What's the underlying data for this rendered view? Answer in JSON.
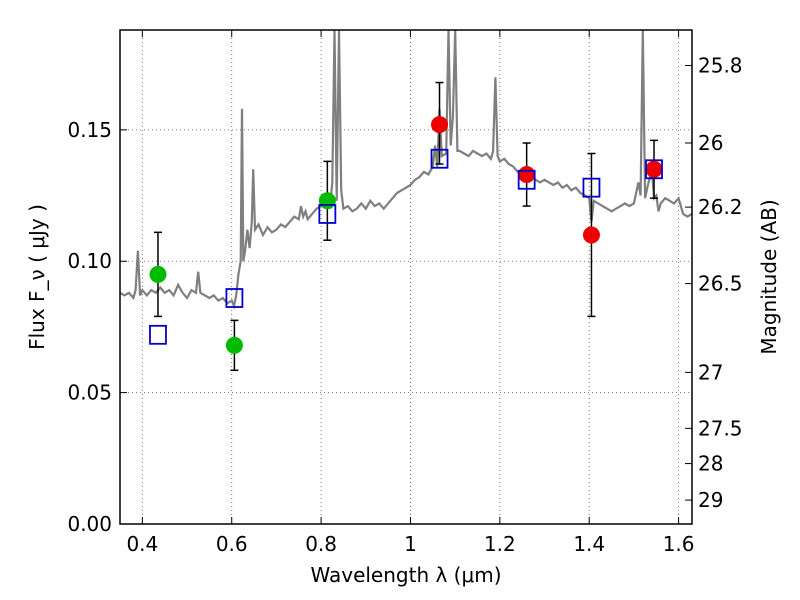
{
  "chart_data": {
    "type": "scatter",
    "xlabel": "Wavelength  λ (μm)",
    "ylabel": "Flux  F_ν  ( μJy )",
    "ylabel_right": "Magnitude (AB)",
    "xlim": [
      0.35,
      1.63
    ],
    "ylim": [
      0.0,
      0.188
    ],
    "grid": true,
    "x_ticks": [
      0.4,
      0.6,
      0.8,
      1.0,
      1.2,
      1.4,
      1.6
    ],
    "x_tick_labels": [
      "0.4",
      "0.6",
      "0.8",
      "1",
      "1.2",
      "1.4",
      "1.6"
    ],
    "y_ticks": [
      0.0,
      0.05,
      0.1,
      0.15
    ],
    "y_tick_labels": [
      "0.00",
      "0.05",
      "0.10",
      "0.15"
    ],
    "mag_ticks": [
      {
        "label": "25.8",
        "flux": 0.1745
      },
      {
        "label": "26",
        "flux": 0.145
      },
      {
        "label": "26.2",
        "flux": 0.1206
      },
      {
        "label": "26.5",
        "flux": 0.0915
      },
      {
        "label": "27",
        "flux": 0.0577
      },
      {
        "label": "27.5",
        "flux": 0.0364
      },
      {
        "label": "28",
        "flux": 0.023
      },
      {
        "label": "29",
        "flux": 0.0091
      }
    ],
    "colors": {
      "green": "#00bb00",
      "red": "#ee0000",
      "blue": "#0000cc",
      "model": "#7f7f7f",
      "grid": "#555555"
    },
    "series": [
      {
        "marker": "circle",
        "color": "#00bb00",
        "points": [
          {
            "x": 0.435,
            "y": 0.095,
            "yerr_low": 0.016,
            "yerr_high": 0.016
          },
          {
            "x": 0.606,
            "y": 0.068,
            "yerr_low": 0.0095,
            "yerr_high": 0.0095
          },
          {
            "x": 0.814,
            "y": 0.123,
            "yerr_low": 0.015,
            "yerr_high": 0.015
          }
        ]
      },
      {
        "marker": "circle",
        "color": "#ee0000",
        "points": [
          {
            "x": 1.065,
            "y": 0.152,
            "yerr_low": 0.015,
            "yerr_high": 0.016
          },
          {
            "x": 1.26,
            "y": 0.133,
            "yerr_low": 0.012,
            "yerr_high": 0.012
          },
          {
            "x": 1.405,
            "y": 0.11,
            "yerr_low": 0.031,
            "yerr_high": 0.031
          },
          {
            "x": 1.545,
            "y": 0.135,
            "yerr_low": 0.011,
            "yerr_high": 0.011
          }
        ]
      },
      {
        "marker": "open-square",
        "color": "#0000cc",
        "points": [
          {
            "x": 0.435,
            "y": 0.072
          },
          {
            "x": 0.606,
            "y": 0.086
          },
          {
            "x": 0.814,
            "y": 0.118
          },
          {
            "x": 1.065,
            "y": 0.139
          },
          {
            "x": 1.26,
            "y": 0.131
          },
          {
            "x": 1.405,
            "y": 0.128
          },
          {
            "x": 1.545,
            "y": 0.135
          }
        ]
      }
    ],
    "model_spectrum": [
      [
        0.35,
        0.088
      ],
      [
        0.36,
        0.087
      ],
      [
        0.37,
        0.088
      ],
      [
        0.38,
        0.086
      ],
      [
        0.385,
        0.089
      ],
      [
        0.39,
        0.104
      ],
      [
        0.395,
        0.087
      ],
      [
        0.4,
        0.089
      ],
      [
        0.41,
        0.087
      ],
      [
        0.42,
        0.089
      ],
      [
        0.43,
        0.088
      ],
      [
        0.44,
        0.09
      ],
      [
        0.45,
        0.088
      ],
      [
        0.46,
        0.089
      ],
      [
        0.47,
        0.087
      ],
      [
        0.48,
        0.091
      ],
      [
        0.49,
        0.088
      ],
      [
        0.5,
        0.086
      ],
      [
        0.51,
        0.089
      ],
      [
        0.52,
        0.088
      ],
      [
        0.525,
        0.096
      ],
      [
        0.53,
        0.088
      ],
      [
        0.54,
        0.087
      ],
      [
        0.55,
        0.086
      ],
      [
        0.56,
        0.087
      ],
      [
        0.57,
        0.085
      ],
      [
        0.58,
        0.086
      ],
      [
        0.59,
        0.084
      ],
      [
        0.6,
        0.085
      ],
      [
        0.605,
        0.083
      ],
      [
        0.61,
        0.087
      ],
      [
        0.615,
        0.095
      ],
      [
        0.62,
        0.1
      ],
      [
        0.623,
        0.158
      ],
      [
        0.626,
        0.1
      ],
      [
        0.63,
        0.104
      ],
      [
        0.635,
        0.112
      ],
      [
        0.64,
        0.105
      ],
      [
        0.645,
        0.115
      ],
      [
        0.648,
        0.135
      ],
      [
        0.652,
        0.112
      ],
      [
        0.66,
        0.114
      ],
      [
        0.67,
        0.11
      ],
      [
        0.68,
        0.113
      ],
      [
        0.69,
        0.111
      ],
      [
        0.7,
        0.112
      ],
      [
        0.71,
        0.114
      ],
      [
        0.72,
        0.113
      ],
      [
        0.73,
        0.115
      ],
      [
        0.74,
        0.117
      ],
      [
        0.75,
        0.116
      ],
      [
        0.755,
        0.121
      ],
      [
        0.76,
        0.117
      ],
      [
        0.765,
        0.119
      ],
      [
        0.77,
        0.116
      ],
      [
        0.78,
        0.118
      ],
      [
        0.79,
        0.12
      ],
      [
        0.8,
        0.121
      ],
      [
        0.805,
        0.124
      ],
      [
        0.81,
        0.121
      ],
      [
        0.815,
        0.125
      ],
      [
        0.82,
        0.12
      ],
      [
        0.825,
        0.13
      ],
      [
        0.83,
        0.188
      ],
      [
        0.835,
        0.123
      ],
      [
        0.84,
        0.188
      ],
      [
        0.845,
        0.127
      ],
      [
        0.85,
        0.12
      ],
      [
        0.86,
        0.121
      ],
      [
        0.87,
        0.119
      ],
      [
        0.88,
        0.12
      ],
      [
        0.89,
        0.122
      ],
      [
        0.9,
        0.12
      ],
      [
        0.91,
        0.123
      ],
      [
        0.92,
        0.121
      ],
      [
        0.93,
        0.122
      ],
      [
        0.94,
        0.12
      ],
      [
        0.95,
        0.122
      ],
      [
        0.96,
        0.124
      ],
      [
        0.97,
        0.126
      ],
      [
        0.98,
        0.127
      ],
      [
        0.99,
        0.128
      ],
      [
        1.0,
        0.129
      ],
      [
        1.01,
        0.131
      ],
      [
        1.02,
        0.132
      ],
      [
        1.03,
        0.134
      ],
      [
        1.04,
        0.133
      ],
      [
        1.05,
        0.136
      ],
      [
        1.055,
        0.144
      ],
      [
        1.06,
        0.136
      ],
      [
        1.065,
        0.158
      ],
      [
        1.07,
        0.14
      ],
      [
        1.08,
        0.141
      ],
      [
        1.085,
        0.188
      ],
      [
        1.09,
        0.144
      ],
      [
        1.095,
        0.155
      ],
      [
        1.1,
        0.188
      ],
      [
        1.105,
        0.142
      ],
      [
        1.11,
        0.142
      ],
      [
        1.12,
        0.141
      ],
      [
        1.13,
        0.14
      ],
      [
        1.14,
        0.142
      ],
      [
        1.15,
        0.141
      ],
      [
        1.16,
        0.14
      ],
      [
        1.17,
        0.141
      ],
      [
        1.18,
        0.139
      ],
      [
        1.185,
        0.142
      ],
      [
        1.19,
        0.17
      ],
      [
        1.195,
        0.14
      ],
      [
        1.2,
        0.138
      ],
      [
        1.21,
        0.139
      ],
      [
        1.22,
        0.137
      ],
      [
        1.23,
        0.136
      ],
      [
        1.24,
        0.134
      ],
      [
        1.25,
        0.133
      ],
      [
        1.26,
        0.132
      ],
      [
        1.27,
        0.133
      ],
      [
        1.28,
        0.131
      ],
      [
        1.29,
        0.13
      ],
      [
        1.3,
        0.131
      ],
      [
        1.31,
        0.13
      ],
      [
        1.32,
        0.129
      ],
      [
        1.33,
        0.13
      ],
      [
        1.34,
        0.128
      ],
      [
        1.35,
        0.129
      ],
      [
        1.36,
        0.127
      ],
      [
        1.37,
        0.128
      ],
      [
        1.38,
        0.126
      ],
      [
        1.39,
        0.125
      ],
      [
        1.4,
        0.124
      ],
      [
        1.405,
        0.115
      ],
      [
        1.41,
        0.123
      ],
      [
        1.42,
        0.122
      ],
      [
        1.43,
        0.121
      ],
      [
        1.44,
        0.12
      ],
      [
        1.45,
        0.119
      ],
      [
        1.46,
        0.12
      ],
      [
        1.47,
        0.121
      ],
      [
        1.48,
        0.122
      ],
      [
        1.49,
        0.121
      ],
      [
        1.5,
        0.122
      ],
      [
        1.51,
        0.13
      ],
      [
        1.515,
        0.125
      ],
      [
        1.52,
        0.188
      ],
      [
        1.525,
        0.124
      ],
      [
        1.53,
        0.128
      ],
      [
        1.54,
        0.135
      ],
      [
        1.545,
        0.124
      ],
      [
        1.55,
        0.125
      ],
      [
        1.555,
        0.119
      ],
      [
        1.56,
        0.122
      ],
      [
        1.57,
        0.124
      ],
      [
        1.58,
        0.123
      ],
      [
        1.59,
        0.122
      ],
      [
        1.6,
        0.124
      ],
      [
        1.61,
        0.118
      ],
      [
        1.62,
        0.117
      ],
      [
        1.63,
        0.118
      ]
    ]
  }
}
